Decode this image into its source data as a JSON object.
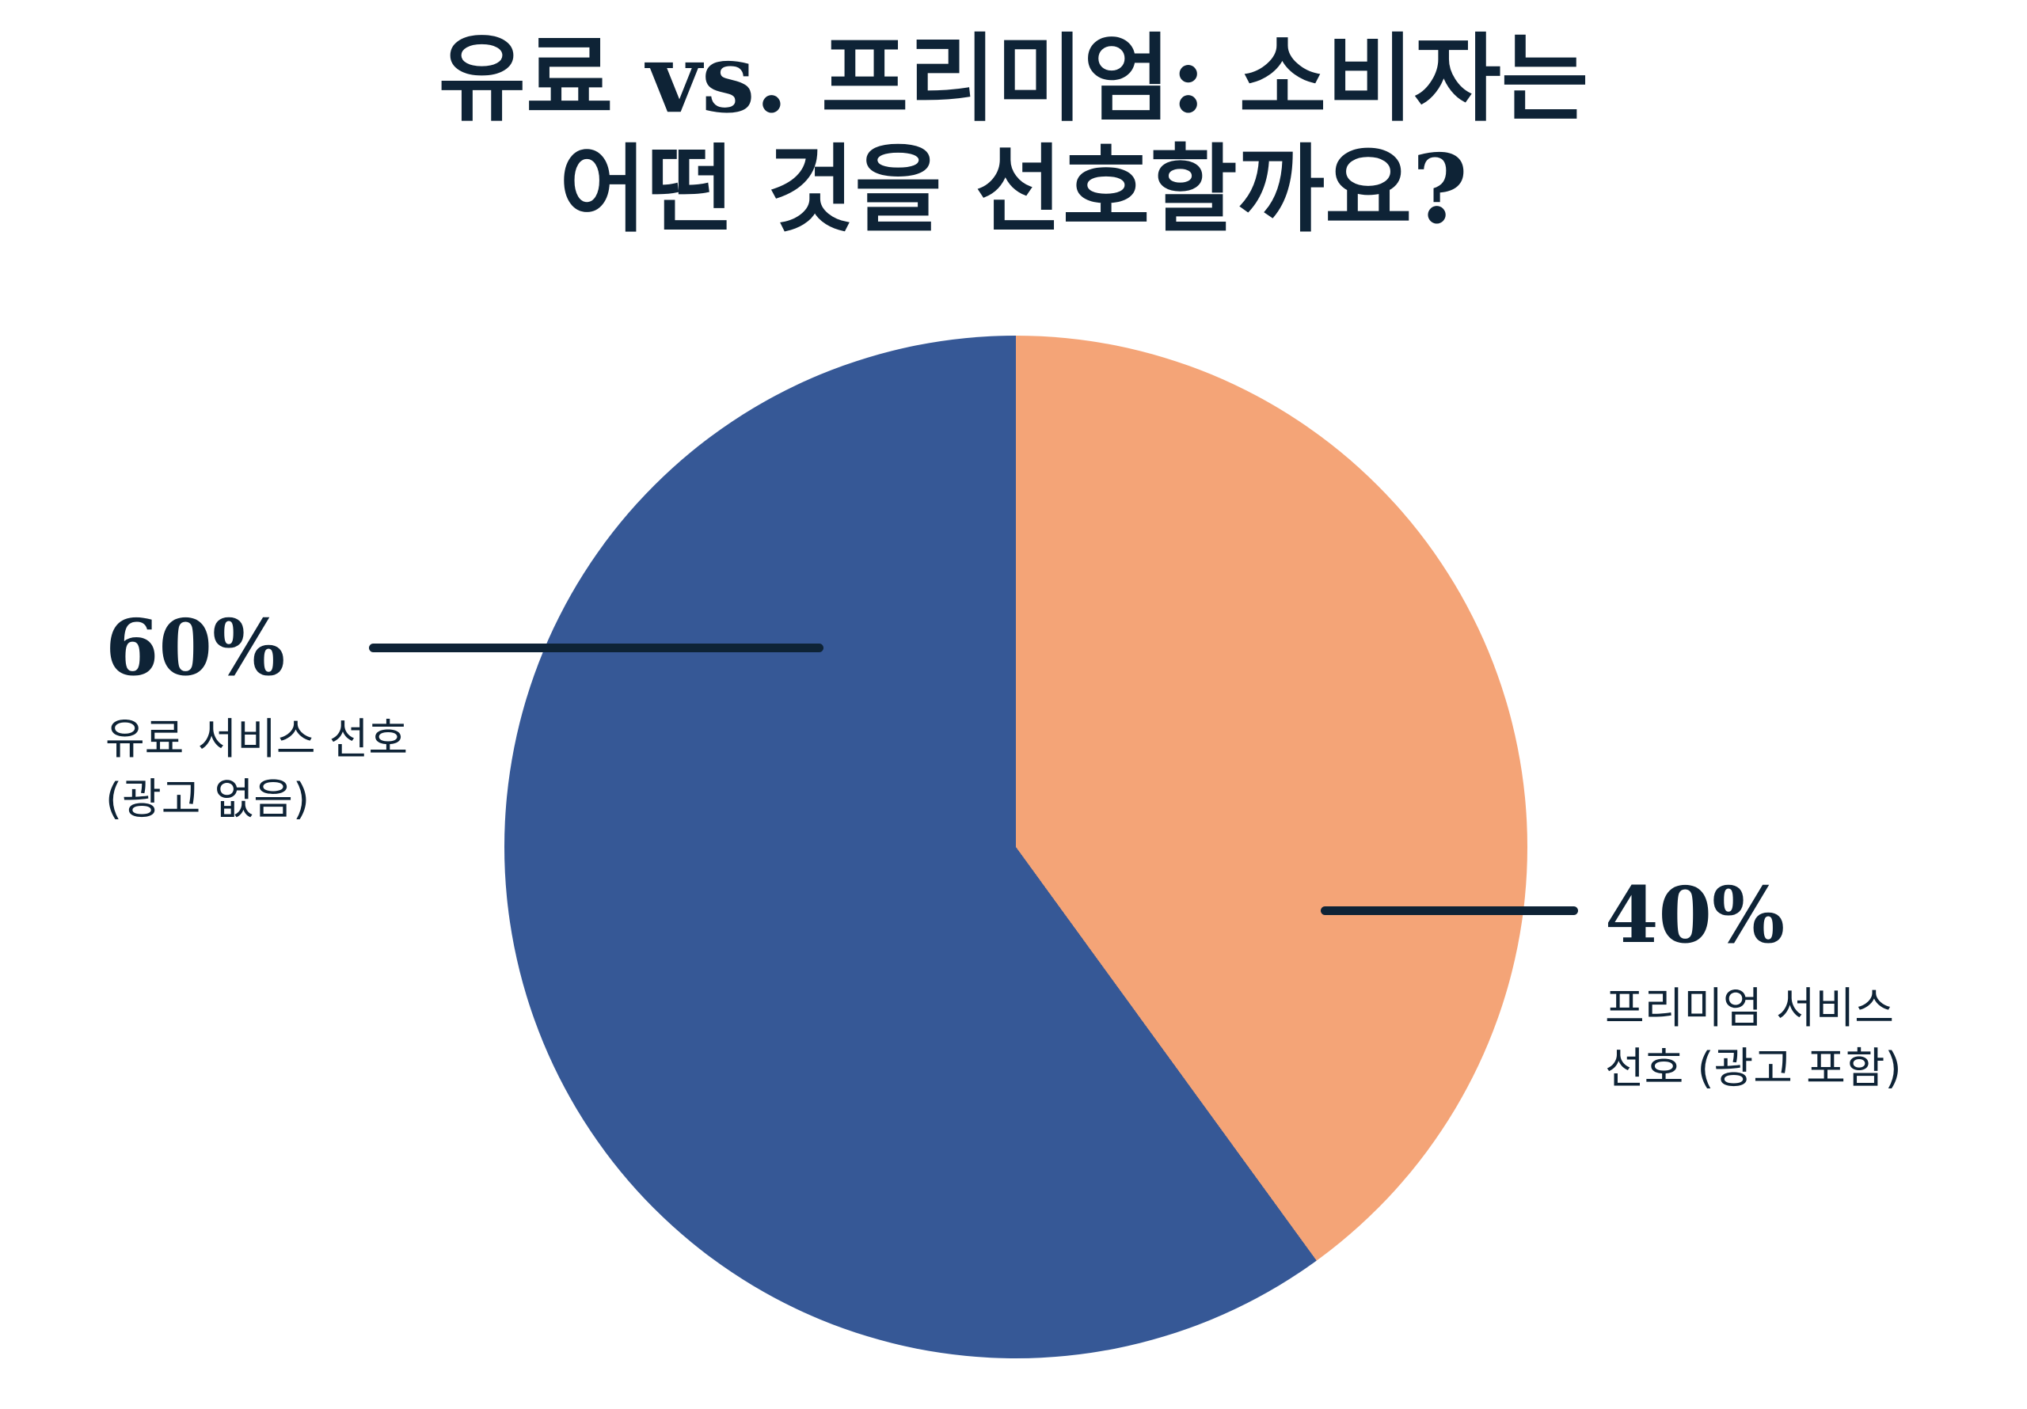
{
  "title": {
    "line1": "유료 vs. 프리미엄: 소비자는",
    "line2": "어떤 것을 선호할까요?"
  },
  "colors": {
    "background": "#ffffff",
    "text": "#0e2336",
    "callout_line": "#0e2336",
    "paid_slice_blue": "#365896",
    "freemium_slice_orange": "#f4a477"
  },
  "chart_data": {
    "type": "pie",
    "title": "유료 vs. 프리미엄: 소비자는 어떤 것을 선호할까요?",
    "start_angle_deg": 0,
    "direction": "clockwise",
    "legend": "none",
    "slices": [
      {
        "name": "freemium",
        "label": "프리미엄 서비스 선호 (광고 포함)",
        "value": 40,
        "value_label": "40%",
        "color": "#f4a477"
      },
      {
        "name": "paid",
        "label": "유료 서비스 선호 (광고 없음)",
        "value": 60,
        "value_label": "60%",
        "color": "#365896"
      }
    ]
  },
  "annotations": {
    "paid": {
      "percent": "60%",
      "desc_line1": "유료 서비스 선호",
      "desc_line2": "(광고 없음)"
    },
    "freemium": {
      "percent": "40%",
      "desc_line1": "프리미엄 서비스",
      "desc_line2": "선호 (광고 포함)"
    }
  }
}
